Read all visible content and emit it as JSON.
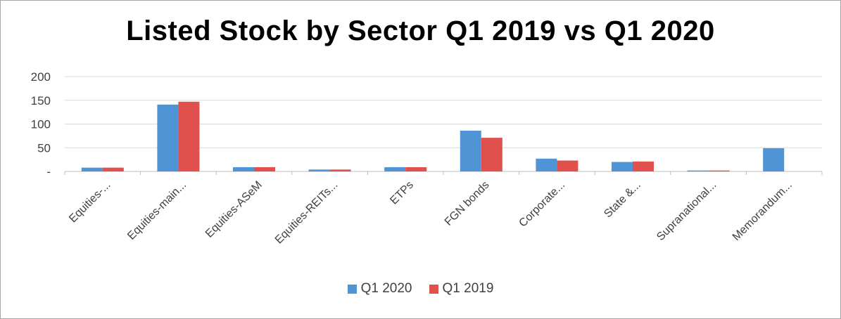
{
  "chart_data": {
    "type": "bar",
    "title": "Listed Stock by Sector Q1 2019 vs Q1 2020",
    "categories": [
      "Equities-...",
      "Equities-main...",
      "Equities-ASeM",
      "Equities-REITs...",
      "ETPs",
      "FGN bonds",
      "Corporate...",
      "State &...",
      "Supranational...",
      "Memorandum..."
    ],
    "series": [
      {
        "name": "Q1 2020",
        "color": "#4f94d4",
        "values": [
          8,
          141,
          9,
          4,
          9,
          86,
          27,
          20,
          2,
          49
        ]
      },
      {
        "name": "Q1 2019",
        "color": "#e0504c",
        "values": [
          8,
          147,
          9,
          4,
          9,
          71,
          23,
          21,
          2,
          0
        ]
      }
    ],
    "yticks": [
      "-",
      "50",
      "100",
      "150",
      "200"
    ],
    "ylim": [
      0,
      200
    ],
    "grid": true,
    "legend_position": "bottom"
  }
}
